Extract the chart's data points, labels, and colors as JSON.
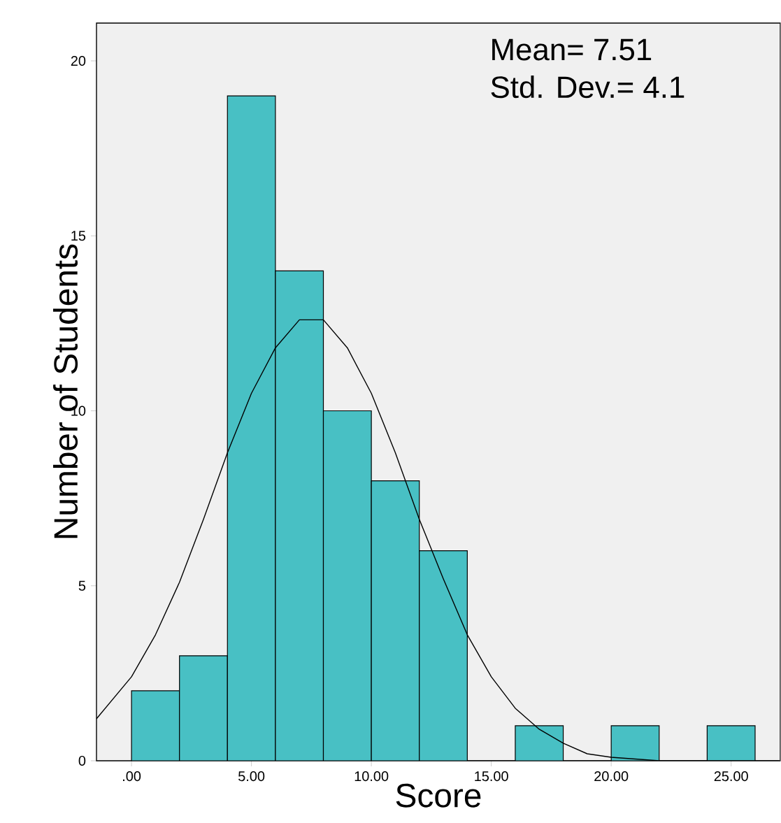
{
  "chart_data": {
    "type": "histogram",
    "xlabel": "Score",
    "ylabel": "Number of Students",
    "bins": [
      0,
      2,
      4,
      6,
      8,
      10,
      12,
      14,
      16,
      18,
      20,
      22,
      24,
      26
    ],
    "values": [
      2,
      3,
      19,
      14,
      10,
      8,
      6,
      0,
      1,
      0,
      1,
      0,
      1
    ],
    "color": "#48c0c4",
    "series": [
      {
        "type": "line",
        "color": "#000000",
        "x": [
          -1.46,
          0,
          1,
          2,
          3,
          4,
          5,
          6,
          7,
          7.5,
          8,
          9,
          10,
          11,
          12,
          13,
          14,
          15,
          16,
          17,
          18,
          19,
          20,
          22,
          25,
          27
        ],
        "values": [
          1.2,
          2.4,
          3.6,
          5.1,
          6.9,
          8.8,
          10.5,
          11.8,
          12.6,
          12.6,
          12.6,
          11.8,
          10.5,
          8.8,
          6.9,
          5.2,
          3.6,
          2.4,
          1.5,
          0.9,
          0.5,
          0.2,
          0.1,
          0.0,
          0.0,
          0.0
        ]
      }
    ],
    "annotations": [
      "Mean= 7.51",
      "Std. Dev.= 4.1"
    ],
    "xlim": [
      -1.46,
      27.05
    ],
    "ylim": [
      0,
      21.08
    ],
    "xticks": [
      {
        "value": 0,
        "label": ".00"
      },
      {
        "value": 5,
        "label": "5.00"
      },
      {
        "value": 10,
        "label": "10.00"
      },
      {
        "value": 15,
        "label": "15.00"
      },
      {
        "value": 20,
        "label": "20.00"
      },
      {
        "value": 25,
        "label": "25.00"
      }
    ],
    "yticks": [
      0,
      5,
      10,
      15,
      20
    ],
    "grid": false
  }
}
